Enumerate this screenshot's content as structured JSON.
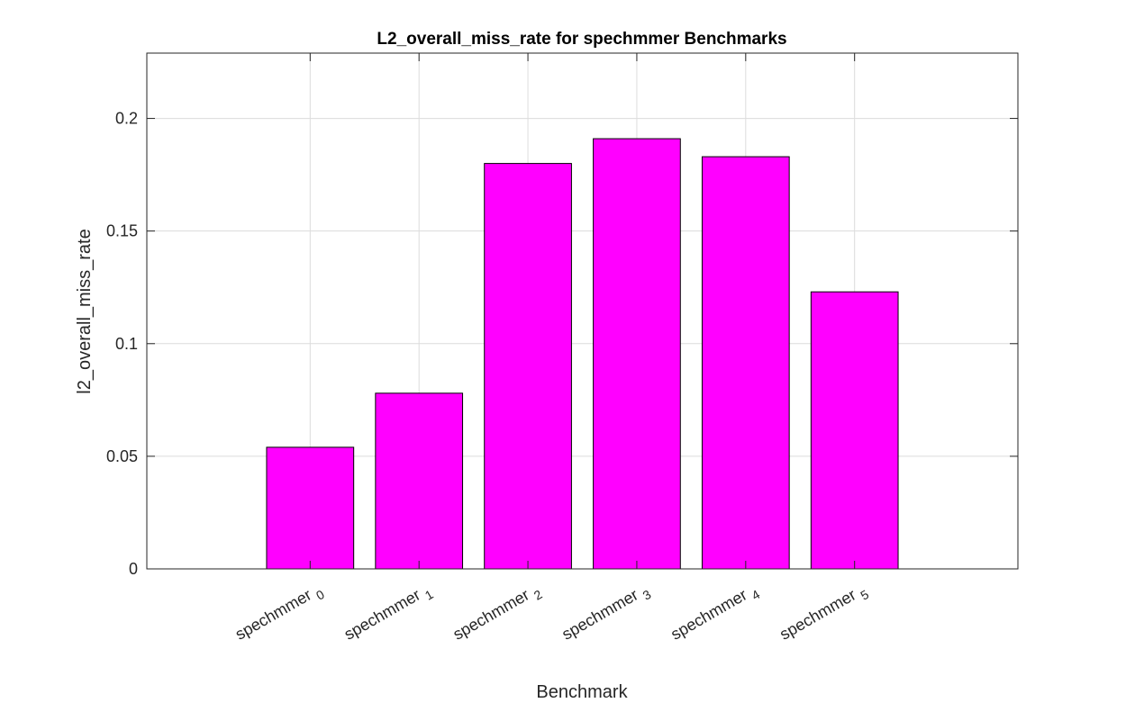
{
  "chart_data": {
    "type": "bar",
    "title": "L2_overall_miss_rate for spechmmer Benchmarks",
    "xlabel": "Benchmark",
    "ylabel": "l2_overall_miss_rate",
    "categories": [
      {
        "base": "spechmmer",
        "sub": "0"
      },
      {
        "base": "spechmmer",
        "sub": "1"
      },
      {
        "base": "spechmmer",
        "sub": "2"
      },
      {
        "base": "spechmmer",
        "sub": "3"
      },
      {
        "base": "spechmmer",
        "sub": "4"
      },
      {
        "base": "spechmmer",
        "sub": "5"
      }
    ],
    "values": [
      0.054,
      0.078,
      0.18,
      0.191,
      0.183,
      0.123
    ],
    "ylim": [
      0,
      0.229
    ],
    "yticks": [
      0,
      0.05,
      0.1,
      0.15,
      0.2
    ],
    "ytick_labels": [
      "0",
      "0.05",
      "0.1",
      "0.15",
      "0.2"
    ],
    "xlim": [
      -0.5,
      7.5
    ],
    "grid": true,
    "bar_color": "#ff00ff",
    "edge_color": "#000000"
  }
}
